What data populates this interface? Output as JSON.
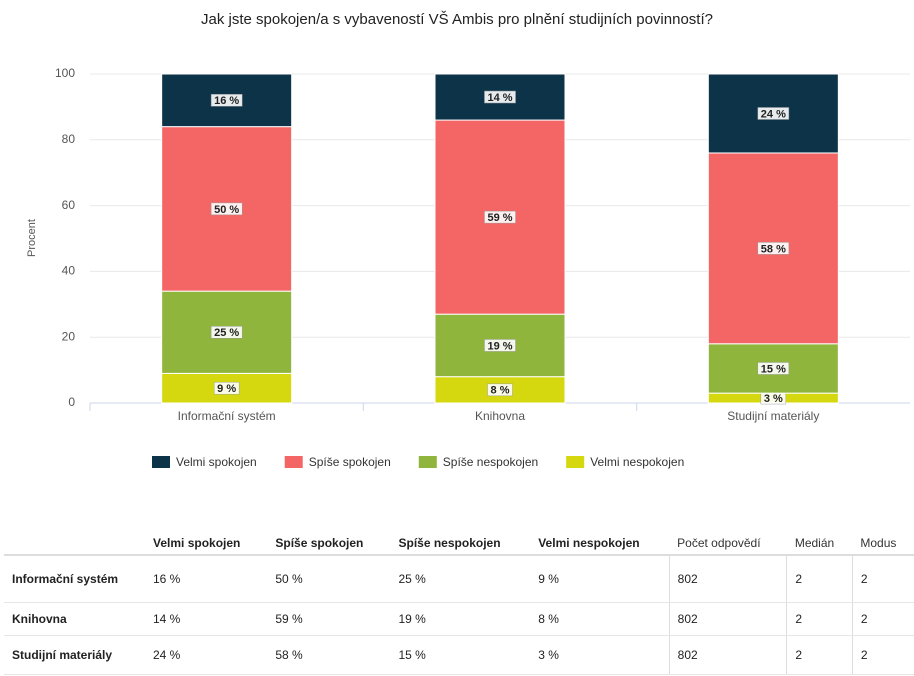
{
  "chart_data": {
    "type": "stacked_bar",
    "title": "Jak jste spokojen/a s vybaveností VŠ Ambis pro plnění studijních povinností?",
    "y_label": "Procent",
    "categories": [
      "Informační systém",
      "Knihovna",
      "Studijní materiály"
    ],
    "series": [
      {
        "name": "Velmi spokojen",
        "color": "#0d3349",
        "values": [
          16,
          14,
          24
        ],
        "value_labels": [
          "16 %",
          "14 %",
          "24 %"
        ]
      },
      {
        "name": "Spíše spokojen",
        "color": "#f46666",
        "values": [
          50,
          59,
          58
        ],
        "value_labels": [
          "50 %",
          "59 %",
          "58 %"
        ]
      },
      {
        "name": "Spíše nespokojen",
        "color": "#8fb53c",
        "values": [
          25,
          19,
          15
        ],
        "value_labels": [
          "25 %",
          "19 %",
          "15 %"
        ]
      },
      {
        "name": "Velmi nespokojen",
        "color": "#d5d80f",
        "values": [
          9,
          8,
          3
        ],
        "value_labels": [
          "9 %",
          "8 %",
          "3 %"
        ]
      }
    ],
    "ylim": [
      0,
      100
    ],
    "yticks": [
      0,
      20,
      40,
      60,
      80,
      100
    ],
    "grid": true,
    "legend": "bottom"
  },
  "table": {
    "headers": [
      "Velmi spokojen",
      "Spíše spokojen",
      "Spíše nespokojen",
      "Velmi nespokojen",
      "Počet odpovědí",
      "Medián",
      "Modus"
    ],
    "rows": [
      {
        "label": "Informační systém",
        "cells": [
          "16 %",
          "50 %",
          "25 %",
          "9 %",
          "802",
          "2",
          "2"
        ]
      },
      {
        "label": "Knihovna",
        "cells": [
          "14 %",
          "59 %",
          "19 %",
          "8 %",
          "802",
          "2",
          "2"
        ]
      },
      {
        "label": "Studijní materiály",
        "cells": [
          "24 %",
          "58 %",
          "15 %",
          "3 %",
          "802",
          "2",
          "2"
        ]
      }
    ]
  }
}
